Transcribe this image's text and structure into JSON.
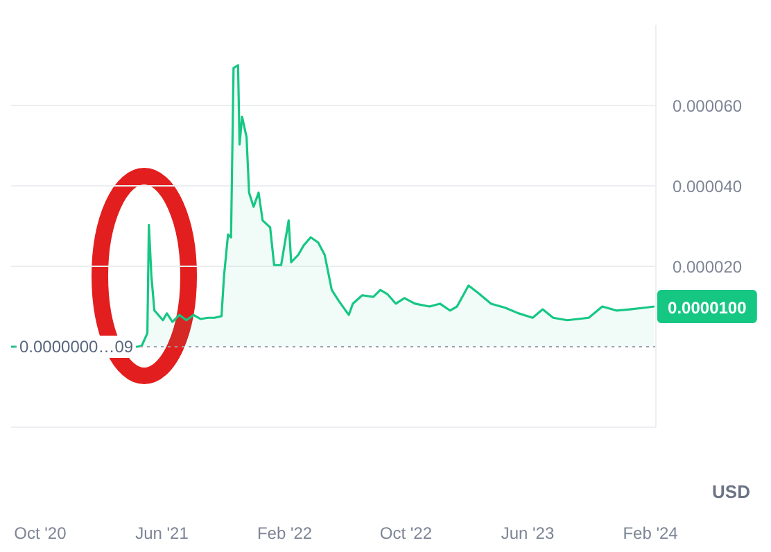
{
  "chart_data": {
    "type": "area",
    "ylabel": "USD",
    "x": [
      "2020-08-04",
      "2021-04-14",
      "2021-04-22",
      "2021-05-03",
      "2021-05-06",
      "2021-05-11",
      "2021-05-17",
      "2021-05-25",
      "2021-06-03",
      "2021-06-11",
      "2021-06-22",
      "2021-07-06",
      "2021-07-20",
      "2021-08-03",
      "2021-08-17",
      "2021-09-01",
      "2021-09-14",
      "2021-09-28",
      "2021-10-03",
      "2021-10-11",
      "2021-10-17",
      "2021-10-22",
      "2021-10-31",
      "2021-11-03",
      "2021-11-08",
      "2021-11-17",
      "2021-11-22",
      "2021-12-01",
      "2021-12-11",
      "2021-12-19",
      "2022-01-03",
      "2022-01-11",
      "2022-01-25",
      "2022-02-09",
      "2022-02-14",
      "2022-02-28",
      "2022-03-11",
      "2022-03-25",
      "2022-04-09",
      "2022-04-22",
      "2022-05-06",
      "2022-05-20",
      "2022-06-09",
      "2022-06-17",
      "2022-07-06",
      "2022-07-28",
      "2022-08-11",
      "2022-08-25",
      "2022-09-11",
      "2022-09-28",
      "2022-10-19",
      "2022-11-17",
      "2022-12-08",
      "2022-12-28",
      "2023-01-11",
      "2023-02-03",
      "2023-02-22",
      "2023-03-20",
      "2023-04-17",
      "2023-05-14",
      "2023-06-11",
      "2023-07-01",
      "2023-07-22",
      "2023-08-19",
      "2023-10-01",
      "2023-10-28",
      "2023-11-25",
      "2023-12-22",
      "2024-01-20",
      "2024-02-09"
    ],
    "series": [
      {
        "color": "#16c784",
        "values": [
          0,
          0,
          3e-07,
          3.4e-06,
          3.03e-05,
          1.76e-05,
          9e-06,
          7.9e-06,
          6.6e-06,
          8.3e-06,
          6.2e-06,
          7.9e-06,
          6.6e-06,
          7.9e-06,
          6.9e-06,
          7.2e-06,
          7.2e-06,
          7.6e-06,
          1.76e-05,
          2.79e-05,
          2.72e-05,
          6.93e-05,
          7e-05,
          5.03e-05,
          5.72e-05,
          5.21e-05,
          3.83e-05,
          3.48e-05,
          3.83e-05,
          3.14e-05,
          2.97e-05,
          2.03e-05,
          2.03e-05,
          3.14e-05,
          2.1e-05,
          2.28e-05,
          2.52e-05,
          2.72e-05,
          2.59e-05,
          2.28e-05,
          1.41e-05,
          1.14e-05,
          7.9e-06,
          1.07e-05,
          1.28e-05,
          1.24e-05,
          1.41e-05,
          1.31e-05,
          1.07e-05,
          1.21e-05,
          1.07e-05,
          1e-05,
          1.07e-05,
          9e-06,
          1e-05,
          1.52e-05,
          1.34e-05,
          1.07e-05,
          9.7e-06,
          8.3e-06,
          7.2e-06,
          9.3e-06,
          7.2e-06,
          6.6e-06,
          7.2e-06,
          1e-05,
          9e-06,
          9.3e-06,
          9.7e-06,
          1e-05
        ]
      }
    ],
    "xlim": [
      "2020-08-04",
      "2024-02-12"
    ],
    "xticks": [
      {
        "value": "2020-10-01",
        "label": "Oct '20"
      },
      {
        "value": "2021-06-01",
        "label": "Jun '21"
      },
      {
        "value": "2022-02-01",
        "label": "Feb '22"
      },
      {
        "value": "2022-10-01",
        "label": "Oct '22"
      },
      {
        "value": "2023-06-01",
        "label": "Jun '23"
      },
      {
        "value": "2024-02-01",
        "label": "Feb '24"
      }
    ],
    "ylim": [
      -2e-05,
      8e-05
    ],
    "yticks": [
      {
        "value": 2e-05,
        "label": "0.000020"
      },
      {
        "value": 4e-05,
        "label": "0.000040"
      },
      {
        "value": 6e-05,
        "label": "0.000060"
      }
    ],
    "grid": "y",
    "ref_lines": [
      {
        "axis": "y",
        "value": 0,
        "label": "0.0000000…09",
        "line_style": "dotted",
        "color": "#9aa0ab"
      }
    ],
    "annotations": [
      {
        "text": "0.0000100",
        "x": "2024-02-09",
        "y": 1e-05
      }
    ]
  }
}
